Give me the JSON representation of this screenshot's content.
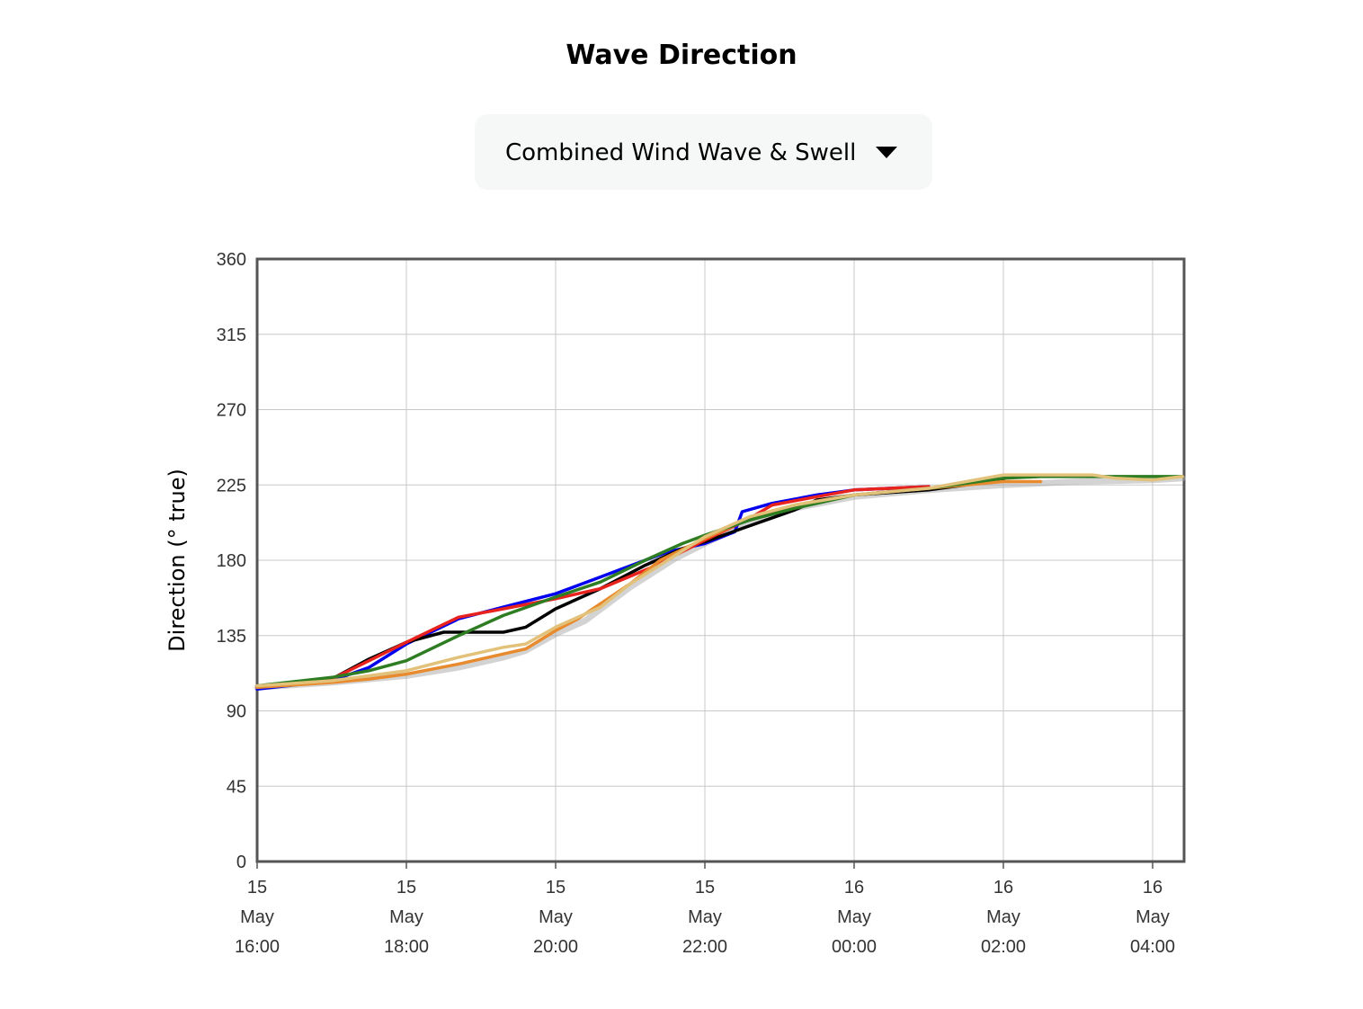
{
  "header": {
    "title": "Wave Direction"
  },
  "selector": {
    "selected": "Combined Wind Wave & Swell"
  },
  "chart_data": {
    "type": "line",
    "ylabel": "Direction (° true)",
    "ylim": [
      0,
      360
    ],
    "yticks": [
      0,
      45,
      90,
      135,
      180,
      225,
      270,
      315,
      360
    ],
    "xlim": [
      0,
      12.4
    ],
    "xticks": [
      {
        "x": 0,
        "day": "15",
        "month": "May",
        "time": "16:00"
      },
      {
        "x": 2,
        "day": "15",
        "month": "May",
        "time": "18:00"
      },
      {
        "x": 4,
        "day": "15",
        "month": "May",
        "time": "20:00"
      },
      {
        "x": 6,
        "day": "15",
        "month": "May",
        "time": "22:00"
      },
      {
        "x": 8,
        "day": "16",
        "month": "May",
        "time": "00:00"
      },
      {
        "x": 10,
        "day": "16",
        "month": "May",
        "time": "02:00"
      },
      {
        "x": 12,
        "day": "16",
        "month": "May",
        "time": "04:00"
      }
    ],
    "grid": true,
    "series": [
      {
        "color": "#a8a8a8",
        "points": [
          [
            0,
            104
          ],
          [
            1,
            107
          ],
          [
            2,
            111
          ],
          [
            2.7,
            116
          ],
          [
            3.3,
            122
          ],
          [
            3.6,
            126
          ],
          [
            4,
            136
          ],
          [
            4.4,
            144
          ],
          [
            5,
            164
          ],
          [
            5.6,
            181
          ],
          [
            6,
            190
          ],
          [
            6.6,
            203
          ],
          [
            7.2,
            211
          ],
          [
            8,
            218
          ],
          [
            9,
            222
          ],
          [
            10,
            225
          ],
          [
            10.5,
            226
          ],
          [
            11,
            227
          ],
          [
            12,
            228
          ],
          [
            12.4,
            229
          ]
        ]
      },
      {
        "color": "#0000ee",
        "points": [
          [
            0,
            103
          ],
          [
            1,
            108
          ],
          [
            1.5,
            116
          ],
          [
            2,
            130
          ],
          [
            2.7,
            145
          ],
          [
            3.3,
            152
          ],
          [
            4,
            160
          ],
          [
            4.6,
            170
          ],
          [
            5.5,
            185
          ],
          [
            6,
            190
          ],
          [
            6.4,
            197
          ],
          [
            6.5,
            209
          ],
          [
            6.9,
            214
          ],
          [
            7.5,
            219
          ],
          [
            8,
            222
          ],
          [
            9,
            224
          ]
        ]
      },
      {
        "color": "#000000",
        "points": [
          [
            0,
            104
          ],
          [
            1,
            109
          ],
          [
            1.5,
            121
          ],
          [
            2,
            131
          ],
          [
            2.5,
            137
          ],
          [
            3,
            137
          ],
          [
            3.3,
            137
          ],
          [
            3.6,
            140
          ],
          [
            4,
            151
          ],
          [
            4.6,
            163
          ],
          [
            5.2,
            177
          ],
          [
            5.7,
            187
          ],
          [
            6,
            191
          ],
          [
            6.5,
            199
          ],
          [
            7.2,
            210
          ],
          [
            7.5,
            216
          ],
          [
            8,
            219
          ],
          [
            9,
            222
          ],
          [
            10,
            228
          ]
        ]
      },
      {
        "color": "#e8231e",
        "points": [
          [
            0,
            104
          ],
          [
            1,
            109
          ],
          [
            1.5,
            120
          ],
          [
            2,
            131
          ],
          [
            2.7,
            146
          ],
          [
            3.3,
            151
          ],
          [
            4,
            157
          ],
          [
            4.6,
            163
          ],
          [
            5.3,
            176
          ],
          [
            5.6,
            183
          ],
          [
            6,
            192
          ],
          [
            6.6,
            205
          ],
          [
            6.9,
            213
          ],
          [
            7.5,
            218
          ],
          [
            8,
            222
          ],
          [
            9,
            224
          ]
        ]
      },
      {
        "color": "#e88a2e",
        "points": [
          [
            0,
            104
          ],
          [
            1,
            107
          ],
          [
            1.5,
            109
          ],
          [
            2,
            112
          ],
          [
            2.7,
            118
          ],
          [
            3.3,
            124
          ],
          [
            3.6,
            127
          ],
          [
            4,
            138
          ],
          [
            4.3,
            145
          ],
          [
            5,
            166
          ],
          [
            5.4,
            180
          ],
          [
            6,
            193
          ],
          [
            6.6,
            205
          ],
          [
            7.2,
            213
          ],
          [
            8,
            219
          ],
          [
            9,
            223
          ],
          [
            10,
            227
          ],
          [
            10.5,
            227
          ]
        ]
      },
      {
        "color": "#2e7d22",
        "points": [
          [
            0,
            105
          ],
          [
            1,
            110
          ],
          [
            1.5,
            114
          ],
          [
            2,
            120
          ],
          [
            2.7,
            135
          ],
          [
            3.3,
            147
          ],
          [
            4,
            158
          ],
          [
            4.6,
            167
          ],
          [
            5.2,
            180
          ],
          [
            5.7,
            190
          ],
          [
            6,
            195
          ],
          [
            6.6,
            204
          ],
          [
            7.2,
            211
          ],
          [
            8,
            219
          ],
          [
            9,
            223
          ],
          [
            10,
            229
          ],
          [
            10.5,
            230
          ],
          [
            11,
            230
          ],
          [
            12,
            230
          ],
          [
            12.4,
            230
          ]
        ]
      },
      {
        "color": "#e2c27a",
        "points": [
          [
            0,
            105
          ],
          [
            1,
            108
          ],
          [
            2,
            114
          ],
          [
            2.7,
            122
          ],
          [
            3.3,
            128
          ],
          [
            3.6,
            130
          ],
          [
            4,
            140
          ],
          [
            4.6,
            152
          ],
          [
            5,
            166
          ],
          [
            5.5,
            180
          ],
          [
            6,
            194
          ],
          [
            6.6,
            206
          ],
          [
            7.2,
            213
          ],
          [
            8,
            219
          ],
          [
            9,
            223
          ],
          [
            10,
            231
          ],
          [
            10.5,
            231
          ],
          [
            11,
            231
          ],
          [
            11.2,
            231
          ],
          [
            11.5,
            229
          ],
          [
            12,
            228
          ],
          [
            12.4,
            230
          ]
        ]
      }
    ]
  }
}
